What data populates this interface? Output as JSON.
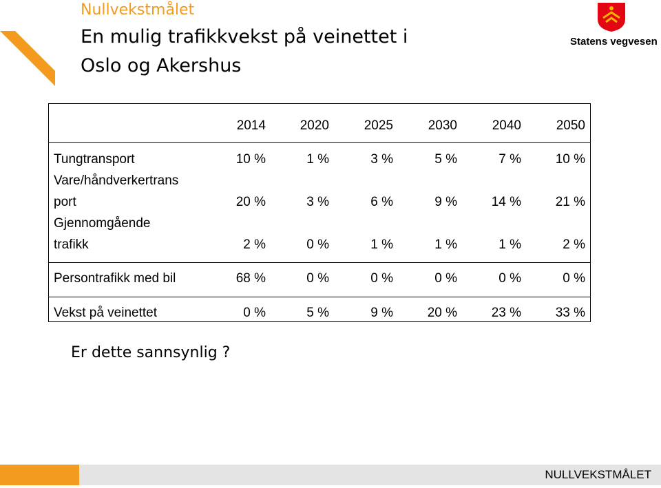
{
  "header": {
    "kicker": "Nullvekstmålet",
    "title_lines": [
      "En mulig trafikkvekst på veinettet i",
      "Oslo og Akershus"
    ],
    "logo": "Statens vegvesen"
  },
  "table": {
    "columns": [
      "2014",
      "2020",
      "2025",
      "2030",
      "2040",
      "2050"
    ],
    "rows": [
      {
        "label": [
          "Tungtransport"
        ],
        "cells": [
          "10 %",
          "1 %",
          "3 %",
          "5 %",
          "7 %",
          "10 %"
        ]
      },
      {
        "label": [
          "Vare/håndverkertrans",
          "port"
        ],
        "cells": [
          "20 %",
          "3 %",
          "6 %",
          "9 %",
          "14 %",
          "21 %"
        ]
      },
      {
        "label": [
          "Gjennomgående",
          "trafikk"
        ],
        "cells": [
          "2 %",
          "0 %",
          "1 %",
          "1 %",
          "1 %",
          "2 %"
        ]
      },
      {
        "label": [
          "Persontrafikk med bil"
        ],
        "cells": [
          "68 %",
          "0 %",
          "0 %",
          "0 %",
          "0 %",
          "0 %"
        ]
      },
      {
        "label": [
          "Vekst på veinettet"
        ],
        "cells": [
          "0 %",
          "5 %",
          "9 %",
          "20 %",
          "23 %",
          "33 %"
        ]
      }
    ]
  },
  "question": "Er dette sannsynlig ?",
  "footer": "NULLVEKSTMÅLET"
}
